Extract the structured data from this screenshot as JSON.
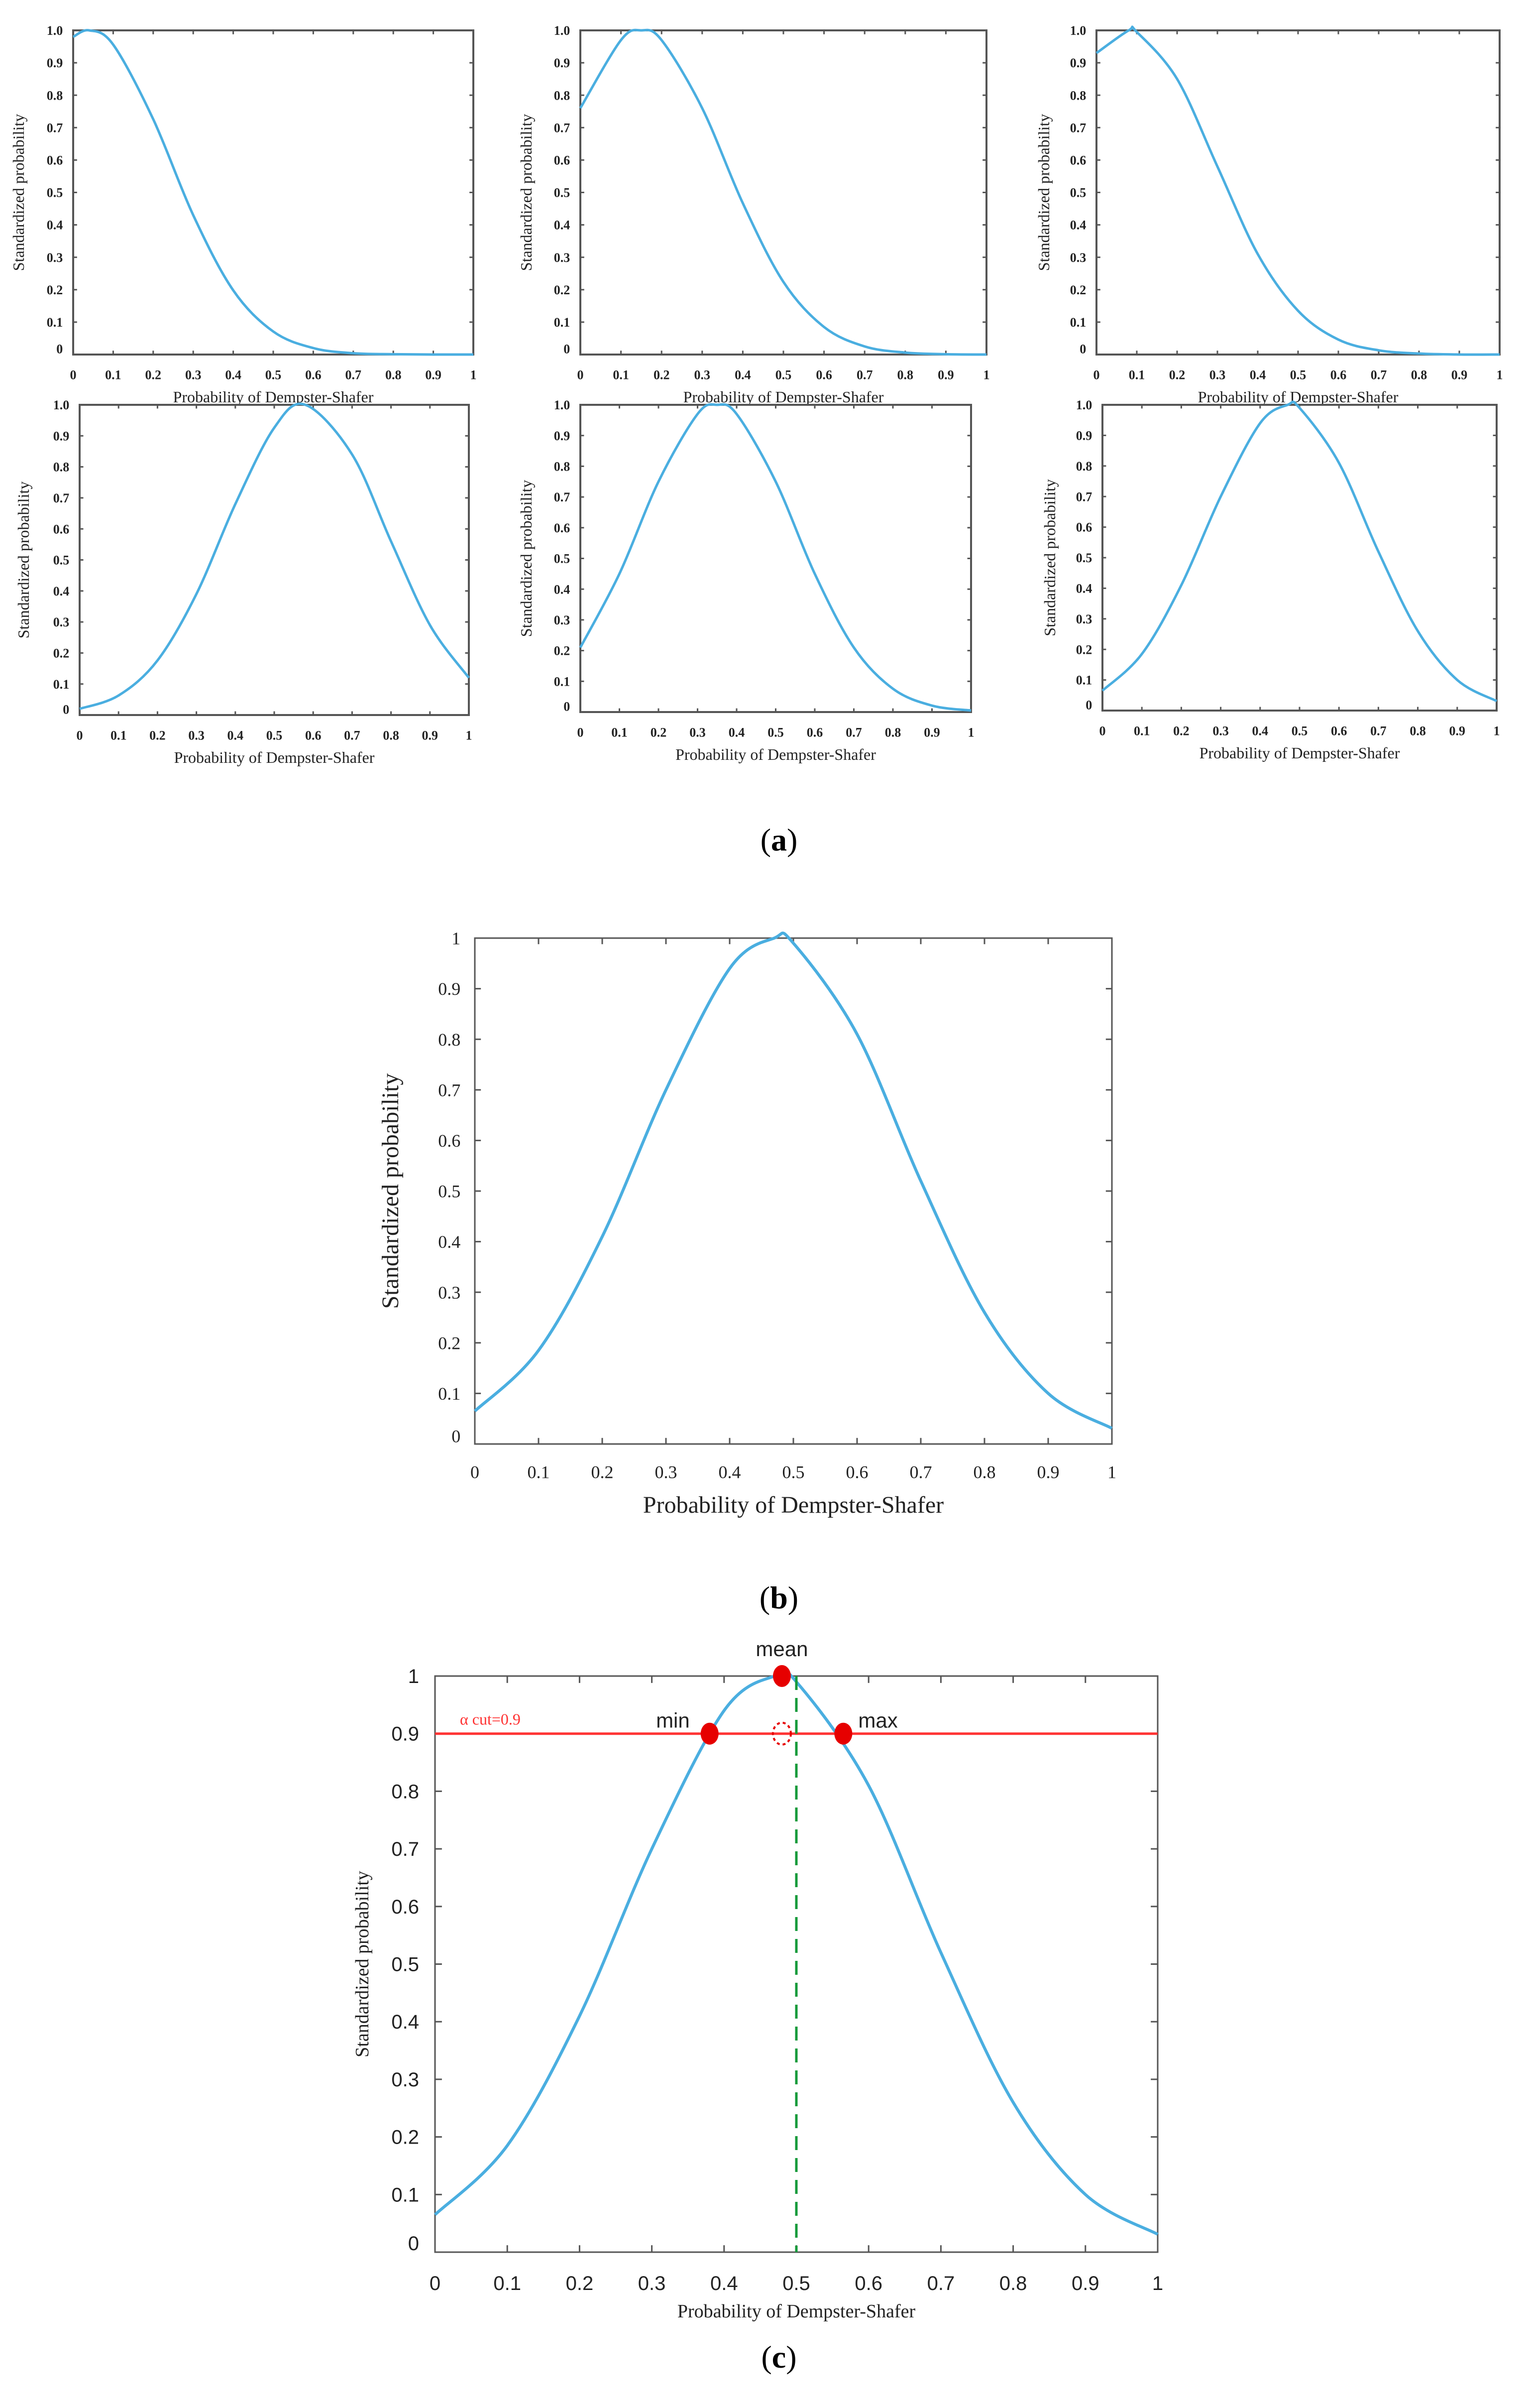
{
  "colors": {
    "curve": "#4aaee0",
    "axis": "#555555",
    "alpha_cut": "#ff3333",
    "marker": "#e60000",
    "guide": "#159a3a"
  },
  "panel_labels": {
    "a": "a",
    "b": "b",
    "c": "c"
  },
  "chart_data": [
    {
      "id": "a1",
      "type": "line",
      "xlabel": "Probability of Dempster-Shafer",
      "ylabel": "Standardized probability",
      "xlim": [
        0,
        1
      ],
      "ylim": [
        0,
        1
      ],
      "xticks": [
        "0",
        "0.1",
        "0.2",
        "0.3",
        "0.4",
        "0.5",
        "0.6",
        "0.7",
        "0.8",
        "0.9",
        "1"
      ],
      "yticks": [
        "0",
        "0.1",
        "0.2",
        "0.3",
        "0.4",
        "0.5",
        "0.6",
        "0.7",
        "0.8",
        "0.9",
        "1.0"
      ],
      "x": [
        0,
        0.04,
        0.1,
        0.2,
        0.3,
        0.4,
        0.5,
        0.6,
        0.7,
        0.8,
        0.9,
        1
      ],
      "y": [
        0.98,
        1,
        0.956,
        0.726,
        0.43,
        0.198,
        0.071,
        0.02,
        0.004,
        0.001,
        0,
        0
      ]
    },
    {
      "id": "a2",
      "type": "line",
      "xlabel": "Probability of Dempster-Shafer",
      "ylabel": "Standardized probability",
      "xlim": [
        0,
        1
      ],
      "ylim": [
        0,
        1
      ],
      "xticks": [
        "0",
        "0.1",
        "0.2",
        "0.3",
        "0.4",
        "0.5",
        "0.6",
        "0.7",
        "0.8",
        "0.9",
        "1"
      ],
      "yticks": [
        "0",
        "0.1",
        "0.2",
        "0.3",
        "0.4",
        "0.5",
        "0.6",
        "0.7",
        "0.8",
        "0.9",
        "1.0"
      ],
      "x": [
        0,
        0.1,
        0.15,
        0.2,
        0.3,
        0.4,
        0.5,
        0.6,
        0.7,
        0.8,
        0.9,
        1
      ],
      "y": [
        0.76,
        0.97,
        1,
        0.97,
        0.76,
        0.467,
        0.224,
        0.085,
        0.025,
        0.006,
        0.001,
        0
      ]
    },
    {
      "id": "a3",
      "type": "line",
      "xlabel": "Probability of Dempster-Shafer",
      "ylabel": "Standardized probability",
      "xlim": [
        0,
        1
      ],
      "ylim": [
        0,
        1
      ],
      "xticks": [
        "0",
        "0.1",
        "0.2",
        "0.3",
        "0.4",
        "0.5",
        "0.6",
        "0.7",
        "0.8",
        "0.9",
        "1"
      ],
      "yticks": [
        "0",
        "0.1",
        "0.2",
        "0.3",
        "0.4",
        "0.5",
        "0.6",
        "0.7",
        "0.8",
        "0.9",
        "1.0"
      ],
      "x": [
        0,
        0.08,
        0.1,
        0.2,
        0.3,
        0.4,
        0.5,
        0.6,
        0.7,
        0.8,
        0.9,
        1
      ],
      "y": [
        0.93,
        1,
        0.995,
        0.85,
        0.58,
        0.31,
        0.135,
        0.046,
        0.013,
        0.003,
        0,
        0
      ]
    },
    {
      "id": "a4",
      "type": "line",
      "xlabel": "Probability of Dempster-Shafer",
      "ylabel": "Standardized probability",
      "xlim": [
        0,
        1
      ],
      "ylim": [
        0,
        1
      ],
      "xticks": [
        "0",
        "0.1",
        "0.2",
        "0.3",
        "0.4",
        "0.5",
        "0.6",
        "0.7",
        "0.8",
        "0.9",
        "1"
      ],
      "yticks": [
        "0",
        "0.1",
        "0.2",
        "0.3",
        "0.4",
        "0.5",
        "0.6",
        "0.7",
        "0.8",
        "0.9",
        "1.0"
      ],
      "x": [
        0,
        0.1,
        0.2,
        0.3,
        0.4,
        0.5,
        0.58,
        0.7,
        0.8,
        0.9,
        1
      ],
      "y": [
        0.02,
        0.063,
        0.176,
        0.39,
        0.68,
        0.926,
        1,
        0.84,
        0.56,
        0.29,
        0.12
      ]
    },
    {
      "id": "a5",
      "type": "line",
      "xlabel": "Probability of Dempster-Shafer",
      "ylabel": "Standardized probability",
      "xlim": [
        0,
        1
      ],
      "ylim": [
        0,
        1
      ],
      "xticks": [
        "0",
        "0.1",
        "0.2",
        "0.3",
        "0.4",
        "0.5",
        "0.6",
        "0.7",
        "0.8",
        "0.9",
        "1"
      ],
      "yticks": [
        "0",
        "0.1",
        "0.2",
        "0.3",
        "0.4",
        "0.5",
        "0.6",
        "0.7",
        "0.8",
        "0.9",
        "1.0"
      ],
      "x": [
        0,
        0.1,
        0.2,
        0.3,
        0.35,
        0.4,
        0.5,
        0.6,
        0.7,
        0.8,
        0.9,
        1
      ],
      "y": [
        0.21,
        0.45,
        0.75,
        0.97,
        1,
        0.97,
        0.75,
        0.45,
        0.21,
        0.076,
        0.021,
        0.005
      ]
    },
    {
      "id": "a6",
      "type": "line",
      "xlabel": "Probability of Dempster-Shafer",
      "ylabel": "Standardized probability",
      "xlim": [
        0,
        1
      ],
      "ylim": [
        0,
        1
      ],
      "xticks": [
        "0",
        "0.1",
        "0.2",
        "0.3",
        "0.4",
        "0.5",
        "0.6",
        "0.7",
        "0.8",
        "0.9",
        "1"
      ],
      "yticks": [
        "0",
        "0.1",
        "0.2",
        "0.3",
        "0.4",
        "0.5",
        "0.6",
        "0.7",
        "0.8",
        "0.9",
        "1.0"
      ],
      "x": [
        0,
        0.1,
        0.2,
        0.3,
        0.4,
        0.47,
        0.5,
        0.6,
        0.7,
        0.8,
        0.9,
        1
      ],
      "y": [
        0.065,
        0.185,
        0.41,
        0.7,
        0.94,
        1,
        0.99,
        0.81,
        0.52,
        0.26,
        0.1,
        0.031
      ]
    },
    {
      "id": "b",
      "type": "line",
      "xlabel": "Probability of Dempster-Shafer",
      "ylabel": "Standardized probability",
      "xlim": [
        0,
        1
      ],
      "ylim": [
        0,
        1
      ],
      "xticks": [
        "0",
        "0.1",
        "0.2",
        "0.3",
        "0.4",
        "0.5",
        "0.6",
        "0.7",
        "0.8",
        "0.9",
        "1"
      ],
      "yticks": [
        "0",
        "0.1",
        "0.2",
        "0.3",
        "0.4",
        "0.5",
        "0.6",
        "0.7",
        "0.8",
        "0.9",
        "1"
      ],
      "x": [
        0,
        0.1,
        0.2,
        0.3,
        0.4,
        0.47,
        0.5,
        0.6,
        0.7,
        0.8,
        0.9,
        1
      ],
      "y": [
        0.065,
        0.185,
        0.41,
        0.7,
        0.94,
        1,
        0.99,
        0.81,
        0.52,
        0.26,
        0.1,
        0.031
      ]
    },
    {
      "id": "c",
      "type": "line",
      "xlabel": "Probability  of Dempster-Shafer",
      "ylabel": "Standardized  probability",
      "xlim": [
        0,
        1
      ],
      "ylim": [
        0,
        1
      ],
      "xticks": [
        "0",
        "0.1",
        "0.2",
        "0.3",
        "0.4",
        "0.5",
        "0.6",
        "0.7",
        "0.8",
        "0.9",
        "1"
      ],
      "yticks": [
        "0",
        "0.1",
        "0.2",
        "0.3",
        "0.4",
        "0.5",
        "0.6",
        "0.7",
        "0.8",
        "0.9",
        "1"
      ],
      "x": [
        0,
        0.1,
        0.2,
        0.3,
        0.4,
        0.47,
        0.5,
        0.6,
        0.7,
        0.8,
        0.9,
        1
      ],
      "y": [
        0.065,
        0.185,
        0.41,
        0.7,
        0.94,
        1,
        0.99,
        0.81,
        0.52,
        0.26,
        0.1,
        0.031
      ],
      "alpha_cut": {
        "label": "α cut=0.9",
        "y": 0.9
      },
      "guide_x": 0.5,
      "markers": [
        {
          "label": "mean",
          "x": 0.48,
          "y": 1,
          "style": "filled"
        },
        {
          "label": "min",
          "x": 0.38,
          "y": 0.9,
          "style": "filled"
        },
        {
          "label": "max",
          "x": 0.565,
          "y": 0.9,
          "style": "filled"
        },
        {
          "label": "",
          "x": 0.48,
          "y": 0.9,
          "style": "dashed-outline"
        }
      ]
    }
  ]
}
